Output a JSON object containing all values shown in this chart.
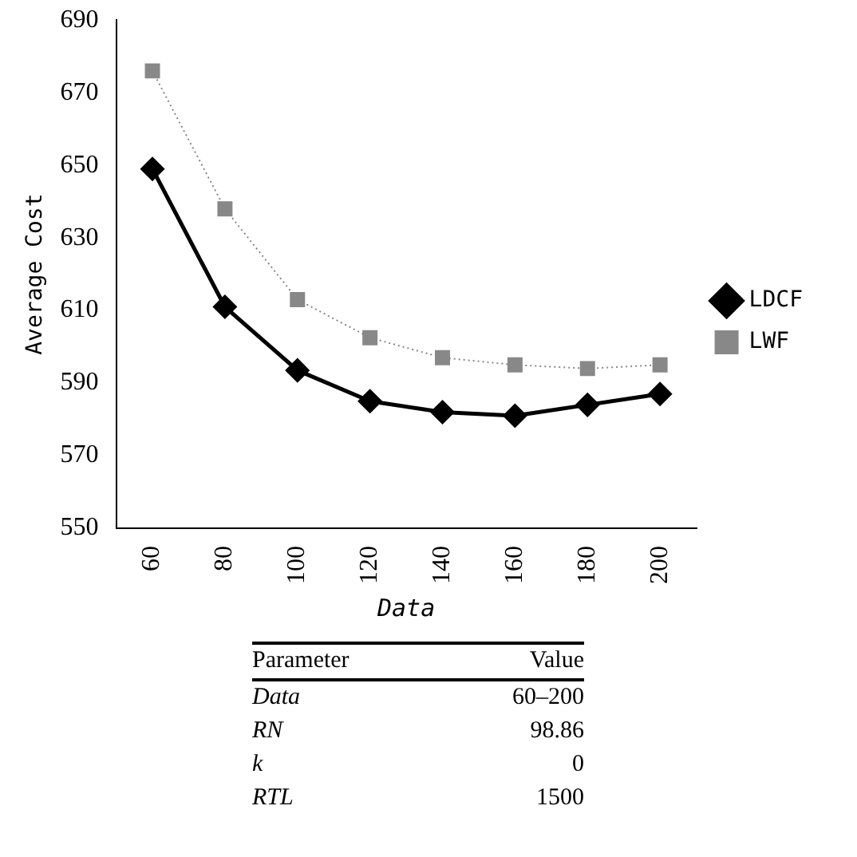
{
  "chart_data": {
    "type": "line",
    "xlabel": "Data",
    "ylabel": "Average Cost",
    "categories": [
      "60",
      "80",
      "100",
      "120",
      "140",
      "160",
      "180",
      "200"
    ],
    "series": [
      {
        "name": "LDCF",
        "color": "#000000",
        "marker": "diamond",
        "line_style": "solid",
        "values": [
          649,
          611,
          593.5,
          585,
          582,
          581,
          584,
          587
        ]
      },
      {
        "name": "LWF",
        "color": "#888888",
        "marker": "square",
        "line_style": "dotted",
        "values": [
          676,
          638,
          613,
          602.5,
          597,
          595,
          594,
          595
        ]
      }
    ],
    "ylim": [
      550,
      690
    ],
    "yticks": [
      550,
      570,
      590,
      610,
      630,
      650,
      670,
      690
    ],
    "grid": false,
    "legend": "right",
    "annotations": [
      "Parameter",
      "Value",
      "Data",
      "60–200",
      "RN",
      "98.86",
      "k",
      "0",
      "RTL",
      "1500"
    ]
  }
}
